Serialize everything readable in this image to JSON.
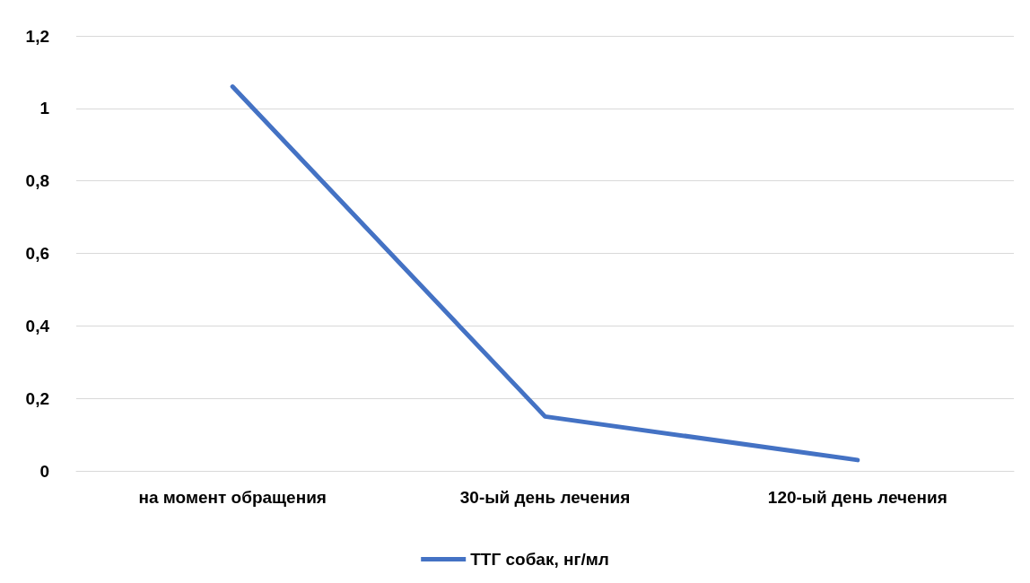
{
  "chart_data": {
    "type": "line",
    "categories": [
      "на момент обращения",
      "30-ый день лечения",
      "120-ый день лечения"
    ],
    "series": [
      {
        "name": "ТТГ собак, нг/мл",
        "color": "#4472c4",
        "values": [
          1.06,
          0.15,
          0.03
        ]
      }
    ],
    "ylim": [
      0,
      1.2
    ],
    "yticks": [
      0,
      {
        "value": 0.2,
        "label": "0,2"
      },
      {
        "value": 0.4,
        "label": "0,4"
      },
      {
        "value": 0.6,
        "label": "0,6"
      },
      {
        "value": 0.8,
        "label": "0,8"
      },
      1,
      {
        "value": 1.2,
        "label": "1,2"
      }
    ],
    "grid": "y",
    "legend": "bottom",
    "marker": "none",
    "line_style": "solid"
  }
}
